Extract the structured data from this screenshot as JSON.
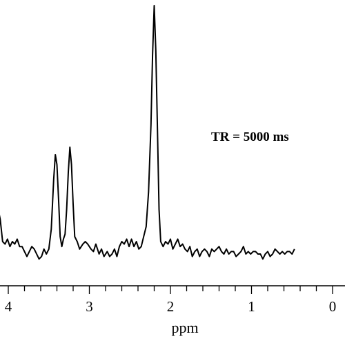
{
  "chart_data": {
    "type": "line",
    "title": "",
    "xlabel": "ppm",
    "ylabel": "",
    "xlim": [
      4.25,
      0
    ],
    "x_reversed": true,
    "ylim": [
      0,
      1
    ],
    "grid": false,
    "legend": "none",
    "x_ticks": [
      {
        "value": 4,
        "label": "4"
      },
      {
        "value": 3,
        "label": "3"
      },
      {
        "value": 2,
        "label": "2"
      },
      {
        "value": 1,
        "label": "1"
      },
      {
        "value": 0,
        "label": "0"
      }
    ],
    "annotations": [
      {
        "text": "TR = 5000 ms"
      }
    ],
    "series": [
      {
        "color": "#000000",
        "points": [
          [
            4.22,
            0.03
          ],
          [
            4.19,
            0.09
          ],
          [
            4.16,
            0.16
          ],
          [
            4.13,
            0.19
          ],
          [
            4.1,
            0.14
          ],
          [
            4.07,
            0.05
          ],
          [
            4.04,
            0.04
          ],
          [
            4.01,
            0.06
          ],
          [
            3.98,
            0.03
          ],
          [
            3.95,
            0.05
          ],
          [
            3.92,
            0.04
          ],
          [
            3.89,
            0.06
          ],
          [
            3.86,
            0.03
          ],
          [
            3.83,
            0.03
          ],
          [
            3.8,
            0.01
          ],
          [
            3.77,
            -0.01
          ],
          [
            3.74,
            0.01
          ],
          [
            3.71,
            0.03
          ],
          [
            3.68,
            0.02
          ],
          [
            3.65,
            0.0
          ],
          [
            3.62,
            -0.02
          ],
          [
            3.59,
            -0.01
          ],
          [
            3.56,
            0.02
          ],
          [
            3.53,
            0.0
          ],
          [
            3.5,
            0.02
          ],
          [
            3.47,
            0.1
          ],
          [
            3.44,
            0.3
          ],
          [
            3.42,
            0.4
          ],
          [
            3.4,
            0.36
          ],
          [
            3.38,
            0.22
          ],
          [
            3.36,
            0.07
          ],
          [
            3.34,
            0.03
          ],
          [
            3.32,
            0.06
          ],
          [
            3.3,
            0.08
          ],
          [
            3.28,
            0.18
          ],
          [
            3.26,
            0.33
          ],
          [
            3.24,
            0.43
          ],
          [
            3.22,
            0.36
          ],
          [
            3.2,
            0.2
          ],
          [
            3.18,
            0.07
          ],
          [
            3.15,
            0.05
          ],
          [
            3.12,
            0.02
          ],
          [
            3.08,
            0.04
          ],
          [
            3.05,
            0.05
          ],
          [
            3.02,
            0.04
          ],
          [
            2.98,
            0.02
          ],
          [
            2.95,
            0.01
          ],
          [
            2.92,
            0.04
          ],
          [
            2.88,
            0.0
          ],
          [
            2.85,
            0.02
          ],
          [
            2.82,
            -0.01
          ],
          [
            2.78,
            0.01
          ],
          [
            2.75,
            -0.01
          ],
          [
            2.72,
            0.0
          ],
          [
            2.69,
            0.02
          ],
          [
            2.66,
            -0.01
          ],
          [
            2.63,
            0.03
          ],
          [
            2.6,
            0.05
          ],
          [
            2.57,
            0.04
          ],
          [
            2.54,
            0.06
          ],
          [
            2.51,
            0.03
          ],
          [
            2.48,
            0.06
          ],
          [
            2.45,
            0.03
          ],
          [
            2.42,
            0.05
          ],
          [
            2.39,
            0.02
          ],
          [
            2.36,
            0.03
          ],
          [
            2.33,
            0.07
          ],
          [
            2.3,
            0.11
          ],
          [
            2.27,
            0.25
          ],
          [
            2.24,
            0.52
          ],
          [
            2.22,
            0.8
          ],
          [
            2.2,
            1.0
          ],
          [
            2.18,
            0.82
          ],
          [
            2.16,
            0.5
          ],
          [
            2.14,
            0.18
          ],
          [
            2.12,
            0.05
          ],
          [
            2.09,
            0.03
          ],
          [
            2.06,
            0.05
          ],
          [
            2.03,
            0.04
          ],
          [
            2.0,
            0.06
          ],
          [
            1.97,
            0.02
          ],
          [
            1.94,
            0.04
          ],
          [
            1.91,
            0.06
          ],
          [
            1.88,
            0.03
          ],
          [
            1.85,
            0.04
          ],
          [
            1.82,
            0.02
          ],
          [
            1.79,
            0.01
          ],
          [
            1.76,
            0.03
          ],
          [
            1.73,
            -0.01
          ],
          [
            1.7,
            0.01
          ],
          [
            1.67,
            0.02
          ],
          [
            1.64,
            -0.01
          ],
          [
            1.61,
            0.01
          ],
          [
            1.58,
            0.02
          ],
          [
            1.55,
            0.01
          ],
          [
            1.52,
            -0.01
          ],
          [
            1.49,
            0.02
          ],
          [
            1.46,
            0.01
          ],
          [
            1.43,
            0.02
          ],
          [
            1.4,
            0.03
          ],
          [
            1.37,
            0.01
          ],
          [
            1.34,
            0.0
          ],
          [
            1.31,
            0.02
          ],
          [
            1.28,
            0.0
          ],
          [
            1.25,
            0.01
          ],
          [
            1.22,
            0.01
          ],
          [
            1.19,
            -0.01
          ],
          [
            1.16,
            0.0
          ],
          [
            1.13,
            0.01
          ],
          [
            1.1,
            0.03
          ],
          [
            1.07,
            0.0
          ],
          [
            1.04,
            0.01
          ],
          [
            1.01,
            0.0
          ],
          [
            0.98,
            0.01
          ],
          [
            0.95,
            0.01
          ],
          [
            0.92,
            0.0
          ],
          [
            0.89,
            0.0
          ],
          [
            0.86,
            -0.02
          ],
          [
            0.83,
            0.0
          ],
          [
            0.8,
            0.01
          ],
          [
            0.77,
            -0.01
          ],
          [
            0.74,
            0.0
          ],
          [
            0.71,
            0.02
          ],
          [
            0.68,
            0.01
          ],
          [
            0.65,
            0.0
          ],
          [
            0.62,
            0.01
          ],
          [
            0.59,
            0.0
          ],
          [
            0.56,
            0.01
          ],
          [
            0.53,
            0.01
          ],
          [
            0.5,
            0.0
          ],
          [
            0.47,
            0.02
          ]
        ]
      }
    ]
  }
}
